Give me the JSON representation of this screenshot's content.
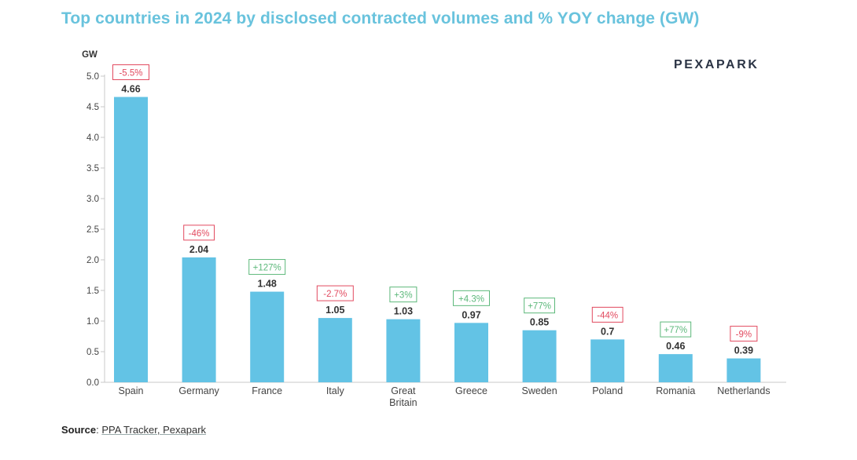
{
  "title": "Top countries in 2024 by disclosed contracted volumes and % YOY change (GW)",
  "logo": "PEXAPARK",
  "source": {
    "label": "Source",
    "separator": ":",
    "text": "PPA Tracker, Pexapark"
  },
  "colors": {
    "bar": "#63c3e5",
    "title": "#69c3dd",
    "negative": "#e24a5f",
    "positive": "#5cb87a"
  },
  "chart_data": {
    "type": "bar",
    "title": "Top countries in 2024 by disclosed contracted volumes and % YOY change (GW)",
    "ylabel": "GW",
    "xlabel": "",
    "ylim": [
      0,
      5.0
    ],
    "yticks": [
      "0.0",
      "0.5",
      "1.0",
      "1.5",
      "2.0",
      "2.5",
      "3.0",
      "3.5",
      "4.0",
      "4.5",
      "5.0"
    ],
    "categories": [
      "Spain",
      "Germany",
      "France",
      "Italy",
      "Great Britain",
      "Greece",
      "Sweden",
      "Poland",
      "Romania",
      "Netherlands"
    ],
    "values": [
      4.66,
      2.04,
      1.48,
      1.05,
      1.03,
      0.97,
      0.85,
      0.7,
      0.46,
      0.39
    ],
    "value_labels": [
      "4.66",
      "2.04",
      "1.48",
      "1.05",
      "1.03",
      "0.97",
      "0.85",
      "0.7",
      "0.46",
      "0.39"
    ],
    "yoy_change": [
      "-5.5%",
      "-46%",
      "+127%",
      "-2.7%",
      "+3%",
      "+4.3%",
      "+77%",
      "-44%",
      "+77%",
      "-9%"
    ],
    "grid": false,
    "legend": "none"
  }
}
